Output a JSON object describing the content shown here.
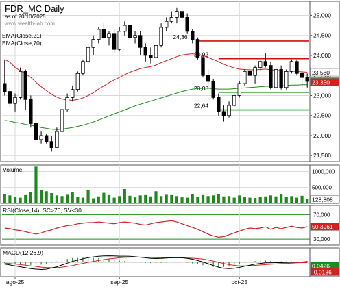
{
  "header": {
    "title": "FDR_MC Daily",
    "subtitle": "as of 20/10/2025",
    "watermark": "www.wealth-lab.com",
    "indicator_labels": [
      "EMA(Close,21)",
      "EMA(Close,70)"
    ]
  },
  "chart_data": [
    {
      "type": "candlestick",
      "name": "price",
      "y_ticks": [
        "25,000",
        "24,500",
        "24,000",
        "23,500",
        "23,000",
        "22,500",
        "22,000",
        "21,500"
      ],
      "y_tick_values": [
        25000,
        24500,
        24000,
        23500,
        23000,
        22500,
        22000,
        21500
      ],
      "ylim": [
        21350,
        25350
      ],
      "x_labels": [
        "ago-25",
        "sep-25",
        "oct-25"
      ],
      "x_label_index": [
        2,
        22,
        45
      ],
      "colors": {
        "up": "#ffffff",
        "down": "#000000",
        "ema21": "#d42020",
        "ema70": "#1c8a1c"
      },
      "ohlc": [
        [
          23300,
          23900,
          23000,
          23100
        ],
        [
          23100,
          23200,
          22700,
          22800
        ],
        [
          22800,
          23050,
          22600,
          22950
        ],
        [
          22950,
          23700,
          22900,
          23600
        ],
        [
          23600,
          23650,
          22650,
          22900
        ],
        [
          22900,
          23000,
          22200,
          22300
        ],
        [
          22300,
          22500,
          21800,
          21900
        ],
        [
          21900,
          22100,
          21800,
          22000
        ],
        [
          22000,
          22050,
          21800,
          21850
        ],
        [
          21850,
          22000,
          21600,
          21700
        ],
        [
          21700,
          22200,
          21700,
          22100
        ],
        [
          22100,
          22700,
          22050,
          22650
        ],
        [
          22650,
          23050,
          22600,
          22950
        ],
        [
          22950,
          23250,
          22850,
          23150
        ],
        [
          23150,
          23600,
          23100,
          23550
        ],
        [
          23550,
          23900,
          23500,
          23850
        ],
        [
          23850,
          24300,
          23800,
          24200
        ],
        [
          24200,
          24500,
          24000,
          24400
        ],
        [
          24400,
          24700,
          24300,
          24650
        ],
        [
          24650,
          24800,
          24400,
          24450
        ],
        [
          24450,
          24600,
          24250,
          24550
        ],
        [
          24550,
          24650,
          24050,
          24150
        ],
        [
          24150,
          24700,
          24100,
          24600
        ],
        [
          24600,
          24850,
          24500,
          24750
        ],
        [
          24750,
          24800,
          24400,
          24450
        ],
        [
          24450,
          24600,
          24300,
          24500
        ],
        [
          24500,
          24600,
          24000,
          24200
        ],
        [
          24200,
          24300,
          23850,
          24000
        ],
        [
          24000,
          24200,
          23800,
          23950
        ],
        [
          23950,
          24300,
          23900,
          24250
        ],
        [
          24250,
          24800,
          24200,
          24700
        ],
        [
          24700,
          24950,
          24600,
          24850
        ],
        [
          24850,
          25100,
          24800,
          24950
        ],
        [
          24950,
          25200,
          24800,
          25100
        ],
        [
          25100,
          25200,
          24900,
          24950
        ],
        [
          24950,
          25050,
          24550,
          24600
        ],
        [
          24600,
          24650,
          24300,
          24400
        ],
        [
          24400,
          24450,
          23900,
          23950
        ],
        [
          23950,
          24000,
          23450,
          23500
        ],
        [
          23500,
          23650,
          23250,
          23350
        ],
        [
          23350,
          23400,
          22900,
          22950
        ],
        [
          22950,
          23050,
          22500,
          22600
        ],
        [
          22600,
          22750,
          22350,
          22500
        ],
        [
          22500,
          22850,
          22450,
          22750
        ],
        [
          22750,
          23050,
          22700,
          23000
        ],
        [
          23000,
          23350,
          22950,
          23300
        ],
        [
          23300,
          23650,
          23250,
          23600
        ],
        [
          23600,
          23800,
          23450,
          23500
        ],
        [
          23500,
          23750,
          23300,
          23700
        ],
        [
          23700,
          23900,
          23600,
          23850
        ],
        [
          23850,
          24050,
          23700,
          23750
        ],
        [
          23750,
          23850,
          23150,
          23200
        ],
        [
          23200,
          23700,
          23150,
          23650
        ],
        [
          23650,
          23750,
          23150,
          23200
        ],
        [
          23200,
          23650,
          23150,
          23600
        ],
        [
          23600,
          23900,
          23550,
          23850
        ],
        [
          23850,
          23900,
          23500,
          23550
        ],
        [
          23550,
          23600,
          23200,
          23450
        ],
        [
          23450,
          23550,
          23200,
          23350
        ]
      ],
      "ema21": [
        23900,
        23830,
        23700,
        23620,
        23540,
        23450,
        23330,
        23220,
        23120,
        23030,
        22960,
        22910,
        22890,
        22880,
        22900,
        22940,
        23000,
        23070,
        23160,
        23240,
        23320,
        23390,
        23450,
        23520,
        23580,
        23630,
        23670,
        23700,
        23720,
        23760,
        23820,
        23870,
        23920,
        23970,
        24010,
        24030,
        24040,
        24030,
        24000,
        23950,
        23900,
        23840,
        23780,
        23730,
        23690,
        23660,
        23650,
        23640,
        23640,
        23650,
        23660,
        23640,
        23630,
        23620,
        23610,
        23610,
        23600,
        23590,
        23580
      ],
      "ema70": [
        22380,
        22360,
        22330,
        22310,
        22280,
        22260,
        22230,
        22200,
        22180,
        22160,
        22150,
        22160,
        22180,
        22200,
        22230,
        22260,
        22300,
        22340,
        22390,
        22440,
        22490,
        22540,
        22590,
        22640,
        22690,
        22740,
        22780,
        22820,
        22860,
        22900,
        22940,
        22980,
        23020,
        23060,
        23100,
        23130,
        23160,
        23170,
        23180,
        23180,
        23170,
        23160,
        23160,
        23160,
        23170,
        23180,
        23190,
        23200,
        23210,
        23220,
        23230,
        23230,
        23240,
        23240,
        23250,
        23260,
        23260,
        23270,
        23270
      ],
      "levels": [
        {
          "label": "24,36",
          "value": 24360,
          "color": "#cc1111",
          "start": 37
        },
        {
          "label": "23,92",
          "value": 23920,
          "color": "#cc1111",
          "start": 41
        },
        {
          "label": "23,08",
          "value": 23080,
          "color": "#119911",
          "start": 41
        },
        {
          "label": "22,64",
          "value": 22640,
          "color": "#119911",
          "start": 41
        }
      ],
      "last_values": [
        {
          "label": "23,580",
          "value": 23580,
          "color": "#ffffff",
          "text_color": "#000000"
        },
        {
          "label": "23,350",
          "value": 23350,
          "color": "#1c8a1c",
          "text_color": "#ffffff"
        },
        {
          "label": "23,350",
          "value": 23350,
          "color": "#d42020",
          "text_color": "#ffffff"
        }
      ]
    },
    {
      "type": "bar",
      "name": "Volume",
      "y_ticks": [
        "1000,000",
        "500,000"
      ],
      "y_tick_values": [
        1000000,
        500000
      ],
      "ylim": [
        0,
        1200000
      ],
      "color": "#1c8a1c",
      "last_label": "128,808",
      "values": [
        300000,
        250000,
        200000,
        180000,
        260000,
        350000,
        1150000,
        420000,
        380000,
        320000,
        250000,
        230000,
        270000,
        350000,
        200000,
        180000,
        420000,
        160000,
        220000,
        330000,
        260000,
        180000,
        230000,
        450000,
        240000,
        190000,
        250000,
        260000,
        220000,
        380000,
        230000,
        270000,
        260000,
        230000,
        190000,
        180000,
        290000,
        210000,
        260000,
        230000,
        250000,
        280000,
        220000,
        230000,
        180000,
        250000,
        200000,
        180000,
        170000,
        200000,
        220000,
        250000,
        220000,
        290000,
        200000,
        230000,
        180000,
        240000,
        128808
      ]
    },
    {
      "type": "line",
      "name": "RSI(Close,14), SC>70, SV<30",
      "y_ticks": [
        "70,000",
        "30,000"
      ],
      "y_tick_values": [
        70,
        30
      ],
      "ylim": [
        20,
        85
      ],
      "color": "#d42020",
      "last_label": "50,3961",
      "values": [
        48,
        47,
        45,
        44,
        42,
        40,
        38,
        40,
        43,
        45,
        48,
        50,
        52,
        53,
        55,
        56,
        57,
        57,
        58,
        57,
        56,
        55,
        57,
        58,
        57,
        56,
        54,
        53,
        55,
        57,
        58,
        59,
        60,
        58,
        55,
        52,
        49,
        46,
        42,
        38,
        35,
        33,
        34,
        37,
        40,
        43,
        46,
        48,
        47,
        48,
        50,
        46,
        49,
        47,
        49,
        51,
        49,
        48,
        50.3961
      ]
    },
    {
      "type": "line",
      "name": "MACD(12,26,9)",
      "ylim": [
        -0.8,
        0.8
      ],
      "colors": {
        "macd": "#000000",
        "signal": "#d42020",
        "histogram": "#1c8a1c"
      },
      "last_labels": [
        {
          "label": "0,0426",
          "color": "#1c8a1c",
          "text_color": "#ffffff"
        },
        {
          "label": "-0,0186",
          "color": "#d42020",
          "text_color": "#ffffff"
        }
      ],
      "macd": [
        -0.1,
        -0.15,
        -0.2,
        -0.25,
        -0.3,
        -0.35,
        -0.38,
        -0.4,
        -0.38,
        -0.32,
        -0.25,
        -0.15,
        -0.05,
        0.05,
        0.12,
        0.2,
        0.26,
        0.3,
        0.33,
        0.35,
        0.36,
        0.35,
        0.34,
        0.34,
        0.33,
        0.31,
        0.28,
        0.25,
        0.22,
        0.21,
        0.22,
        0.24,
        0.25,
        0.26,
        0.25,
        0.22,
        0.17,
        0.1,
        0.02,
        -0.08,
        -0.18,
        -0.27,
        -0.33,
        -0.35,
        -0.33,
        -0.28,
        -0.22,
        -0.16,
        -0.1,
        -0.06,
        -0.03,
        -0.03,
        -0.02,
        -0.02,
        -0.01,
        0.0,
        0.01,
        0.02,
        0.0426
      ],
      "signal": [
        -0.05,
        -0.07,
        -0.1,
        -0.13,
        -0.16,
        -0.2,
        -0.23,
        -0.27,
        -0.29,
        -0.3,
        -0.3,
        -0.27,
        -0.23,
        -0.18,
        -0.12,
        -0.06,
        0.0,
        0.05,
        0.1,
        0.15,
        0.19,
        0.22,
        0.25,
        0.27,
        0.28,
        0.29,
        0.29,
        0.28,
        0.27,
        0.26,
        0.25,
        0.25,
        0.25,
        0.25,
        0.25,
        0.24,
        0.23,
        0.21,
        0.18,
        0.13,
        0.07,
        0.0,
        -0.07,
        -0.13,
        -0.17,
        -0.2,
        -0.2,
        -0.19,
        -0.17,
        -0.15,
        -0.13,
        -0.11,
        -0.09,
        -0.07,
        -0.06,
        -0.05,
        -0.03,
        -0.02,
        -0.0186
      ]
    }
  ]
}
